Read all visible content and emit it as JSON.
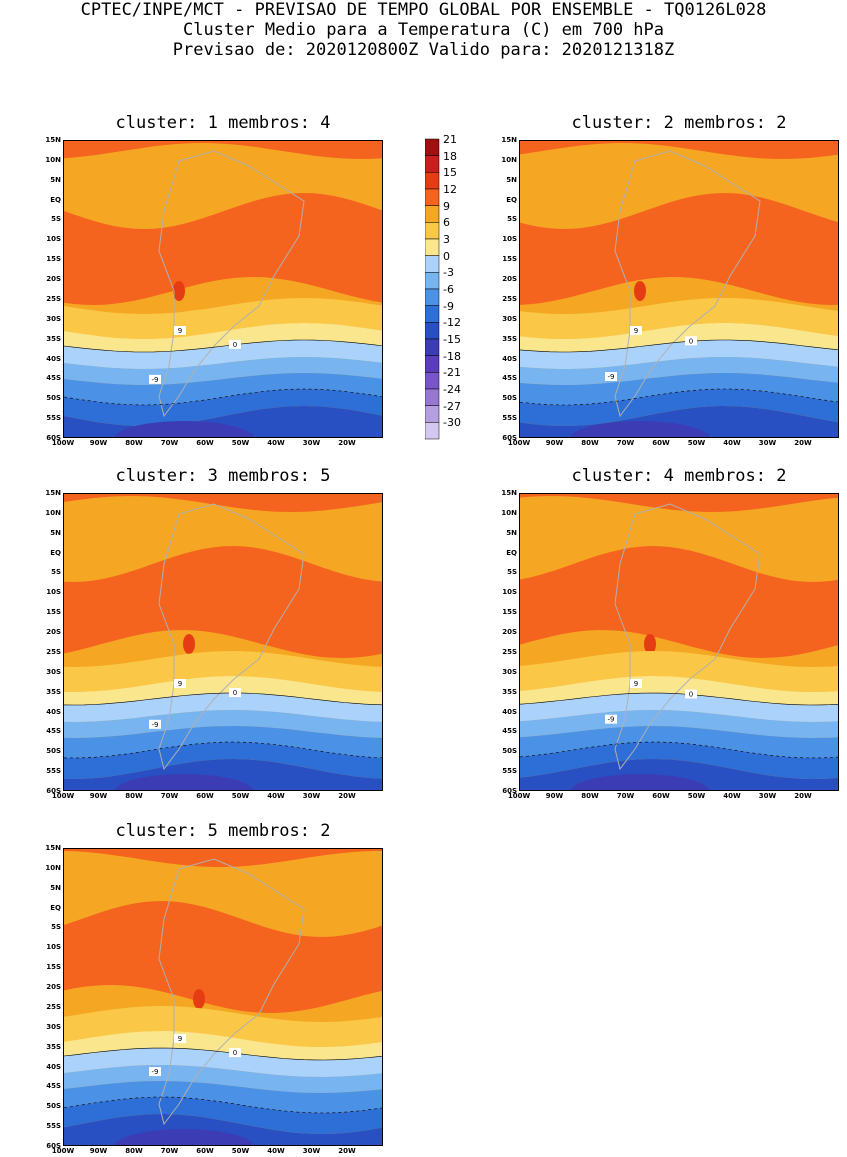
{
  "header": {
    "line1": "CPTEC/INPE/MCT - PREVISAO DE TEMPO GLOBAL POR ENSEMBLE - TQ0126L028",
    "line2": "Cluster Medio para a Temperatura (C) em 700 hPa",
    "line3": "Previsao de: 2020120800Z   Valido para: 2020121318Z"
  },
  "panels": [
    {
      "title": "cluster: 1   membros: 4"
    },
    {
      "title": "cluster: 2   membros: 2"
    },
    {
      "title": "cluster: 3   membros: 5"
    },
    {
      "title": "cluster: 4   membros: 2"
    },
    {
      "title": "cluster: 5   membros: 2"
    }
  ],
  "axes": {
    "lat_ticks": [
      "15N",
      "10N",
      "5N",
      "EQ",
      "5S",
      "10S",
      "15S",
      "20S",
      "25S",
      "30S",
      "35S",
      "40S",
      "45S",
      "50S",
      "55S",
      "60S"
    ],
    "lon_ticks": [
      "100W",
      "90W",
      "80W",
      "70W",
      "60W",
      "50W",
      "40W",
      "30W",
      "20W"
    ]
  },
  "colorbar": {
    "levels": [
      "21",
      "18",
      "15",
      "12",
      "9",
      "6",
      "3",
      "0",
      "-3",
      "-6",
      "-9",
      "-12",
      "-15",
      "-18",
      "-21",
      "-24",
      "-27",
      "-30"
    ],
    "colors": [
      "#a01010",
      "#c81e1e",
      "#e63c14",
      "#f5641e",
      "#f5a623",
      "#fac846",
      "#fae68c",
      "#aad2fa",
      "#78b4f0",
      "#4b91e6",
      "#2d6ed7",
      "#2850c3",
      "#3c3cb4",
      "#5a3cbe",
      "#7855c8",
      "#9678d2",
      "#b4a0e1",
      "#d2c8f0"
    ]
  },
  "contour_labels": [
    "9",
    "0",
    "-9"
  ]
}
